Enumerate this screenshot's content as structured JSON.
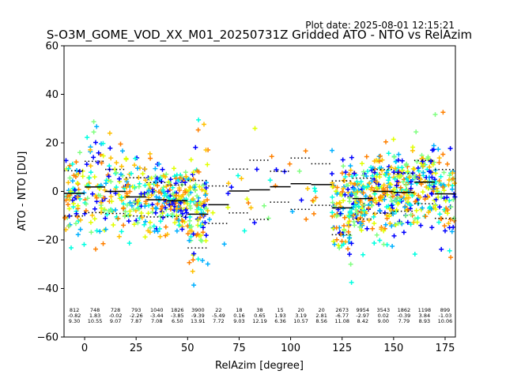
{
  "chart_data": {
    "type": "scatter",
    "title": "S-O3M_GOME_VOD_XX_M01_20250731Z Gridded ATO - NTO vs RelAzim",
    "subtitle": "Plot date: 2025-08-01 12:15:21",
    "xlabel": "RelAzim [degree]",
    "ylabel": "ATO - NTO [DU]",
    "xlim": [
      -10,
      180
    ],
    "ylim": [
      -60,
      60
    ],
    "xticks": [
      "0",
      "25",
      "50",
      "75",
      "100",
      "125",
      "150",
      "175"
    ],
    "yticks": [
      "−60",
      "−40",
      "−20",
      "0",
      "20",
      "40",
      "60"
    ],
    "grid": false,
    "marker": "+",
    "point_colors": [
      "#0000ff",
      "#00b0ff",
      "#00ffe0",
      "#80ff80",
      "#e0ff00",
      "#ffc000",
      "#ff8000"
    ],
    "bins": [
      {
        "center": -5,
        "count": "812",
        "mean": "-0.82",
        "std": "9.30",
        "n": 812,
        "m": -0.82,
        "s": 9.3
      },
      {
        "center": 5,
        "count": "748",
        "mean": "1.83",
        "std": "10.55",
        "n": 748,
        "m": 1.83,
        "s": 10.55
      },
      {
        "center": 15,
        "count": "728",
        "mean": "-0.02",
        "std": "9.07",
        "n": 728,
        "m": -0.02,
        "s": 9.07
      },
      {
        "center": 25,
        "count": "793",
        "mean": "-2.26",
        "std": "7.87",
        "n": 793,
        "m": -2.26,
        "s": 7.87
      },
      {
        "center": 35,
        "count": "1040",
        "mean": "-3.44",
        "std": "7.08",
        "n": 1040,
        "m": -3.44,
        "s": 7.08
      },
      {
        "center": 45,
        "count": "1826",
        "mean": "-3.85",
        "std": "6.50",
        "n": 1826,
        "m": -3.85,
        "s": 6.5
      },
      {
        "center": 55,
        "count": "3900",
        "mean": "-9.39",
        "std": "13.91",
        "n": 3900,
        "m": -9.39,
        "s": 13.91
      },
      {
        "center": 65,
        "count": "22",
        "mean": "-5.49",
        "std": "7.72",
        "n": 22,
        "m": -5.49,
        "s": 7.72
      },
      {
        "center": 75,
        "count": "18",
        "mean": "0.16",
        "std": "9.03",
        "n": 18,
        "m": 0.16,
        "s": 9.03
      },
      {
        "center": 85,
        "count": "38",
        "mean": "0.65",
        "std": "12.19",
        "n": 38,
        "m": 0.65,
        "s": 12.19
      },
      {
        "center": 95,
        "count": "15",
        "mean": "1.93",
        "std": "6.36",
        "n": 15,
        "m": 1.93,
        "s": 6.36
      },
      {
        "center": 105,
        "count": "20",
        "mean": "3.19",
        "std": "10.57",
        "n": 20,
        "m": 3.19,
        "s": 10.57
      },
      {
        "center": 115,
        "count": "20",
        "mean": "2.81",
        "std": "8.56",
        "n": 20,
        "m": 2.81,
        "s": 8.56
      },
      {
        "center": 125,
        "count": "2673",
        "mean": "-6.77",
        "std": "11.08",
        "n": 2673,
        "m": -6.77,
        "s": 11.08
      },
      {
        "center": 135,
        "count": "9954",
        "mean": "-2.97",
        "std": "8.42",
        "n": 9954,
        "m": -2.97,
        "s": 8.42
      },
      {
        "center": 145,
        "count": "3543",
        "mean": "0.02",
        "std": "9.00",
        "n": 3543,
        "m": 0.02,
        "s": 9.0
      },
      {
        "center": 155,
        "count": "1862",
        "mean": "-0.39",
        "std": "7.79",
        "n": 1862,
        "m": -0.39,
        "s": 7.79
      },
      {
        "center": 165,
        "count": "1198",
        "mean": "3.84",
        "std": "8.93",
        "n": 1198,
        "m": 3.84,
        "s": 8.93
      },
      {
        "center": 175,
        "count": "899",
        "mean": "-1.03",
        "std": "10.06",
        "n": 899,
        "m": -1.03,
        "s": 10.06
      }
    ]
  }
}
